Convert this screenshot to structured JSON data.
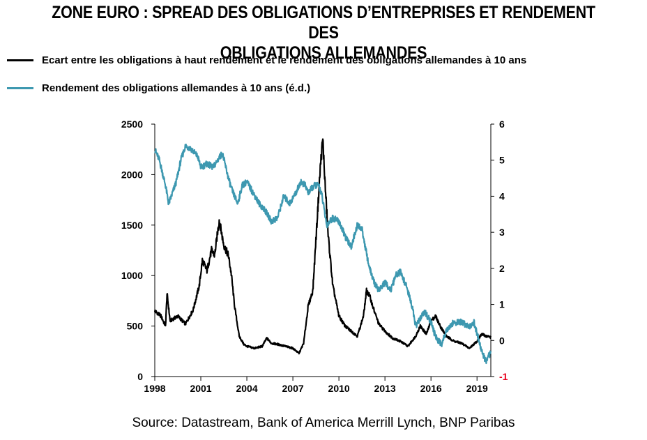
{
  "title": "ZONE EURO : SPREAD DES OBLIGATIONS D’ENTREPRISES  ET RENDEMENT DES OBLIGATIONS ALLEMANDES",
  "title_line1": "ZONE EURO : SPREAD DES OBLIGATIONS D’ENTREPRISES  ET RENDEMENT DES",
  "title_line2": "OBLIGATIONS ALLEMANDES",
  "source": "Source: Datastream, Bank of America Merrill Lynch, BNP Paribas",
  "chart_data": {
    "type": "line",
    "legend_placement": "top-left",
    "grid": false,
    "x_ticks": [
      "1998",
      "2001",
      "2004",
      "2007",
      "2010",
      "2013",
      "2016",
      "2019"
    ],
    "xlim": [
      1998,
      2019.9
    ],
    "y_left": {
      "lim": [
        0,
        2500
      ],
      "ticks": [
        "0",
        "500",
        "1000",
        "1500",
        "2000",
        "2500"
      ]
    },
    "y_right": {
      "lim": [
        -1,
        6
      ],
      "ticks": [
        "-1",
        "0",
        "1",
        "2",
        "3",
        "4",
        "5",
        "6"
      ],
      "neg_tick_color": "#e8001c"
    },
    "series": [
      {
        "name": "Ecart entre les obligations à haut rendement et le rendement des obligations allemandes à 10 ans",
        "axis": "left",
        "color": "#000000",
        "x": [
          1998.0,
          1998.4,
          1998.7,
          1998.8,
          1999.0,
          1999.5,
          2000.0,
          2000.5,
          2000.9,
          2001.1,
          2001.4,
          2001.7,
          2001.9,
          2002.2,
          2002.5,
          2002.8,
          2003.0,
          2003.2,
          2003.5,
          2003.8,
          2004.0,
          2004.5,
          2005.0,
          2005.3,
          2005.6,
          2006.0,
          2006.5,
          2007.0,
          2007.4,
          2007.7,
          2008.0,
          2008.3,
          2008.6,
          2008.8,
          2008.95,
          2009.1,
          2009.3,
          2009.6,
          2010.0,
          2010.4,
          2010.8,
          2011.2,
          2011.6,
          2011.8,
          2012.0,
          2012.3,
          2012.6,
          2013.0,
          2013.5,
          2014.0,
          2014.5,
          2015.0,
          2015.3,
          2015.7,
          2016.0,
          2016.3,
          2016.6,
          2017.0,
          2017.5,
          2018.0,
          2018.5,
          2019.0,
          2019.3,
          2019.6,
          2019.9
        ],
        "values": [
          650,
          600,
          500,
          820,
          550,
          600,
          520,
          660,
          900,
          1150,
          1050,
          1250,
          1200,
          1550,
          1300,
          1200,
          1000,
          700,
          400,
          320,
          300,
          280,
          300,
          380,
          330,
          320,
          300,
          280,
          230,
          330,
          700,
          850,
          1600,
          2100,
          2350,
          1900,
          1400,
          900,
          600,
          500,
          450,
          400,
          600,
          850,
          800,
          650,
          520,
          450,
          380,
          350,
          300,
          400,
          500,
          420,
          550,
          600,
          500,
          400,
          350,
          330,
          280,
          350,
          420,
          400,
          390
        ]
      },
      {
        "name": "Rendement des obligations allemandes à 10 ans (é.d.)",
        "axis": "right",
        "color": "#3d98b0",
        "x": [
          1998.0,
          1998.3,
          1998.7,
          1998.9,
          1999.0,
          1999.4,
          1999.7,
          2000.0,
          2000.4,
          2000.8,
          2001.0,
          2001.4,
          2001.8,
          2002.1,
          2002.4,
          2002.8,
          2003.0,
          2003.4,
          2003.7,
          2004.0,
          2004.4,
          2004.8,
          2005.2,
          2005.6,
          2006.0,
          2006.4,
          2006.8,
          2007.2,
          2007.5,
          2007.8,
          2008.0,
          2008.4,
          2008.7,
          2008.9,
          2009.2,
          2009.6,
          2010.0,
          2010.5,
          2010.8,
          2011.2,
          2011.5,
          2011.8,
          2012.0,
          2012.3,
          2012.6,
          2013.0,
          2013.4,
          2013.7,
          2014.0,
          2014.4,
          2014.8,
          2015.0,
          2015.3,
          2015.6,
          2016.0,
          2016.3,
          2016.7,
          2017.0,
          2017.5,
          2018.0,
          2018.5,
          2018.8,
          2019.0,
          2019.3,
          2019.6,
          2019.9
        ],
        "values": [
          5.3,
          5.0,
          4.3,
          3.8,
          3.9,
          4.4,
          5.0,
          5.4,
          5.3,
          5.1,
          4.8,
          4.9,
          4.8,
          5.0,
          5.2,
          4.5,
          4.2,
          3.8,
          4.3,
          4.4,
          4.1,
          3.8,
          3.6,
          3.3,
          3.4,
          4.0,
          3.8,
          4.1,
          4.4,
          4.3,
          4.1,
          4.3,
          4.3,
          4.0,
          3.2,
          3.4,
          3.3,
          2.8,
          2.6,
          3.2,
          3.1,
          2.4,
          2.0,
          1.6,
          1.4,
          1.6,
          1.4,
          1.8,
          1.9,
          1.5,
          0.9,
          0.4,
          0.6,
          0.8,
          0.5,
          0.1,
          -0.1,
          0.3,
          0.5,
          0.5,
          0.4,
          0.5,
          0.2,
          -0.3,
          -0.6,
          -0.3
        ]
      }
    ]
  }
}
